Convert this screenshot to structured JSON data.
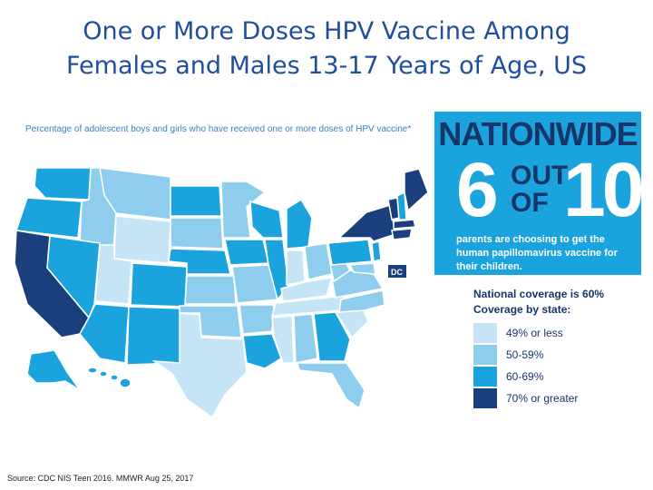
{
  "title_line1": "One or More Doses HPV Vaccine Among",
  "title_line2": "Females and Males 13-17 Years of Age, US",
  "map_subtitle": "Percentage of adolescent boys and girls who have received one or more doses of HPV vaccine*",
  "banner": {
    "headline": "NATIONWIDE",
    "big_number": "6",
    "out_of": "OUT OF",
    "total": "10",
    "text": "parents are choosing to get the human papillomavirus vaccine for their children."
  },
  "legend": {
    "national": "National coverage is 60%",
    "by_state": "Coverage by state:",
    "items": [
      {
        "label": "49% or less",
        "color": "#c5e5f7"
      },
      {
        "label": "50-59%",
        "color": "#8fcdee"
      },
      {
        "label": "60-69%",
        "color": "#1aa3dc"
      },
      {
        "label": "70% or greater",
        "color": "#1a3f7c"
      }
    ]
  },
  "dc_label": "DC",
  "source": "Source: CDC NIS Teen 2016. MMWR Aug 25, 2017",
  "colors": {
    "low": "#c5e5f7",
    "mid": "#8fcdee",
    "high": "#1aa3dc",
    "top": "#1a3f7c",
    "title": "#1f4e9c"
  }
}
